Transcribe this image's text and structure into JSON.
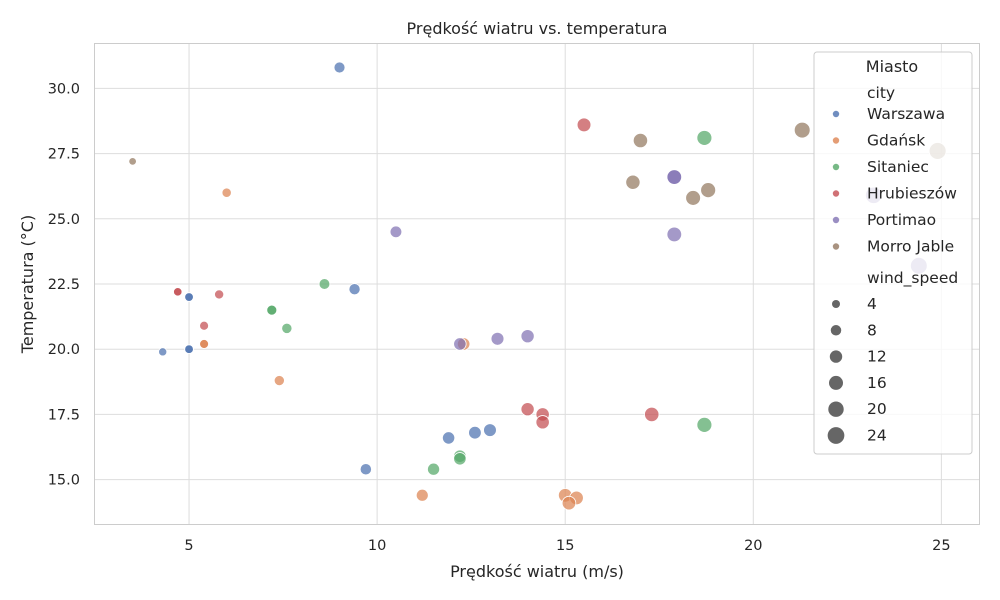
{
  "chart_data": {
    "type": "scatter",
    "title": "Prędkość wiatru vs. temperatura",
    "xlabel": "Prędkość wiatru (m/s)",
    "ylabel": "Temperatura (°C)",
    "xlim": [
      2.5,
      26
    ],
    "ylim": [
      13.3,
      31.7
    ],
    "xticks": [
      5,
      10,
      15,
      20,
      25
    ],
    "yticks": [
      15.0,
      17.5,
      20.0,
      22.5,
      25.0,
      27.5,
      30.0
    ],
    "xtick_labels": [
      "5",
      "10",
      "15",
      "20",
      "25"
    ],
    "ytick_labels": [
      "15.0",
      "17.5",
      "20.0",
      "22.5",
      "25.0",
      "27.5",
      "30.0"
    ],
    "grid": true,
    "legend": {
      "placement": "upper-right",
      "title": "Miasto",
      "hue_header": "city",
      "size_header": "wind_speed",
      "size_values": [
        4,
        8,
        12,
        16,
        20,
        24
      ],
      "size_labels": [
        "4",
        "8",
        "12",
        "16",
        "20",
        "24"
      ]
    },
    "series": [
      {
        "name": "Warszawa",
        "color": "#4c72b0",
        "points": [
          {
            "x": 9.0,
            "y": 30.8
          },
          {
            "x": 9.4,
            "y": 22.3
          },
          {
            "x": 5.0,
            "y": 22.0
          },
          {
            "x": 5.0,
            "y": 22.0
          },
          {
            "x": 4.3,
            "y": 19.9
          },
          {
            "x": 5.0,
            "y": 20.0
          },
          {
            "x": 5.0,
            "y": 20.0
          },
          {
            "x": 9.7,
            "y": 15.4
          },
          {
            "x": 11.9,
            "y": 16.6
          },
          {
            "x": 12.6,
            "y": 16.8
          },
          {
            "x": 13.0,
            "y": 16.9
          }
        ]
      },
      {
        "name": "Gdańsk",
        "color": "#dd8452",
        "points": [
          {
            "x": 6.0,
            "y": 26.0
          },
          {
            "x": 5.4,
            "y": 20.2
          },
          {
            "x": 5.4,
            "y": 20.2
          },
          {
            "x": 7.4,
            "y": 18.8
          },
          {
            "x": 12.3,
            "y": 20.2
          },
          {
            "x": 11.2,
            "y": 14.4
          },
          {
            "x": 15.0,
            "y": 14.4
          },
          {
            "x": 15.3,
            "y": 14.3
          },
          {
            "x": 15.1,
            "y": 14.1
          }
        ]
      },
      {
        "name": "Sitaniec",
        "color": "#55a868",
        "points": [
          {
            "x": 8.6,
            "y": 22.5
          },
          {
            "x": 7.2,
            "y": 21.5
          },
          {
            "x": 7.2,
            "y": 21.5
          },
          {
            "x": 7.6,
            "y": 20.8
          },
          {
            "x": 11.5,
            "y": 15.4
          },
          {
            "x": 12.2,
            "y": 15.9
          },
          {
            "x": 12.2,
            "y": 15.8
          },
          {
            "x": 18.7,
            "y": 28.1
          },
          {
            "x": 18.7,
            "y": 17.1
          }
        ]
      },
      {
        "name": "Hrubieszów",
        "color": "#c44e52",
        "points": [
          {
            "x": 4.7,
            "y": 22.2
          },
          {
            "x": 4.7,
            "y": 22.2
          },
          {
            "x": 5.8,
            "y": 22.1
          },
          {
            "x": 5.4,
            "y": 20.9
          },
          {
            "x": 15.5,
            "y": 28.6
          },
          {
            "x": 14.0,
            "y": 17.7
          },
          {
            "x": 14.4,
            "y": 17.5
          },
          {
            "x": 14.4,
            "y": 17.2
          },
          {
            "x": 17.3,
            "y": 17.5
          }
        ]
      },
      {
        "name": "Portimao",
        "color": "#8172b3",
        "points": [
          {
            "x": 10.5,
            "y": 24.5
          },
          {
            "x": 12.2,
            "y": 20.2
          },
          {
            "x": 13.2,
            "y": 20.4
          },
          {
            "x": 14.0,
            "y": 20.5
          },
          {
            "x": 17.9,
            "y": 26.6
          },
          {
            "x": 17.9,
            "y": 26.6
          },
          {
            "x": 17.9,
            "y": 24.4
          },
          {
            "x": 23.2,
            "y": 25.9
          },
          {
            "x": 24.4,
            "y": 23.2
          }
        ]
      },
      {
        "name": "Morro Jable",
        "color": "#937860",
        "points": [
          {
            "x": 3.5,
            "y": 27.2
          },
          {
            "x": 17.0,
            "y": 28.0
          },
          {
            "x": 16.8,
            "y": 26.4
          },
          {
            "x": 18.8,
            "y": 26.1
          },
          {
            "x": 18.4,
            "y": 25.8
          },
          {
            "x": 21.3,
            "y": 28.4
          },
          {
            "x": 24.9,
            "y": 27.6
          }
        ]
      }
    ]
  }
}
